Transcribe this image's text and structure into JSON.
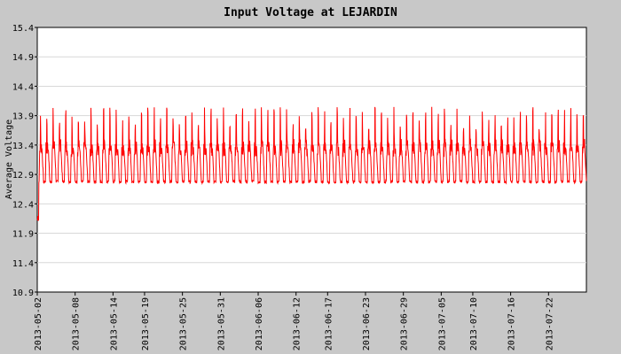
{
  "chart_data": {
    "type": "line",
    "title": "Input Voltage at LEJARDIN",
    "xlabel": "",
    "ylabel": "Average Voltage",
    "ylim": [
      10.9,
      15.4
    ],
    "yticks": [
      "10.9",
      "11.4",
      "11.9",
      "12.4",
      "12.9",
      "13.4",
      "13.9",
      "14.4",
      "14.9",
      "15.4"
    ],
    "xlim": [
      "2013-05-02",
      "2013-07-28"
    ],
    "xticks": [
      "2013-05-02",
      "2013-05-08",
      "2013-05-14",
      "2013-05-19",
      "2013-05-25",
      "2013-05-31",
      "2013-06-06",
      "2013-06-12",
      "2013-06-17",
      "2013-06-23",
      "2013-06-29",
      "2013-07-05",
      "2013-07-10",
      "2013-07-16",
      "2013-07-22"
    ],
    "grid": true,
    "series": [
      {
        "name": "",
        "color": "#ff0000",
        "daily_pattern": {
          "night_min": 12.75,
          "day_typical": 13.3,
          "daily_peak": 13.8,
          "peak_range": [
            13.6,
            14.05
          ],
          "start_dip_min": 12.1
        }
      }
    ]
  }
}
